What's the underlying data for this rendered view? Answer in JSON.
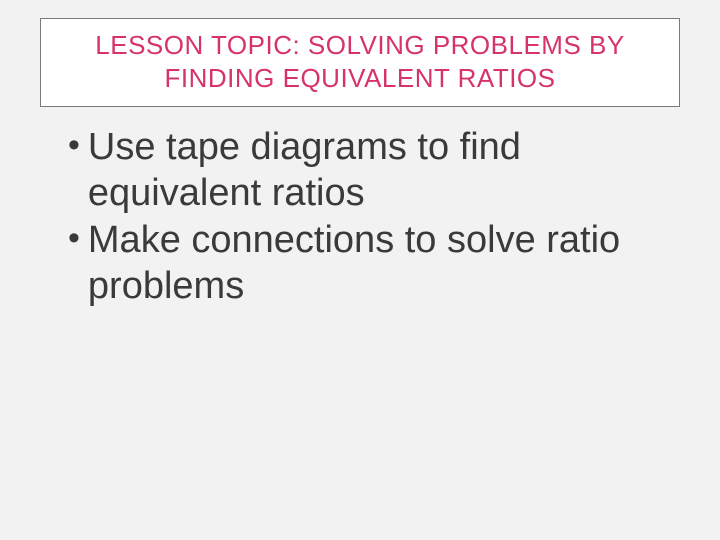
{
  "colors": {
    "background": "#f2f2f2",
    "title_box_bg": "#ffffff",
    "title_box_border": "#7a7a7a",
    "title_text": "#d6336c",
    "body_text": "#3a3a3a",
    "bullet_mark": "#3a3a3a"
  },
  "typography": {
    "title_fontsize": 26,
    "title_weight": 400,
    "body_fontsize": 38,
    "font_family": "Arial"
  },
  "title": "LESSON TOPIC:  SOLVING PROBLEMS BY FINDING EQUIVALENT RATIOS",
  "bullets": [
    "Use tape diagrams to find equivalent ratios",
    "Make connections to solve ratio problems"
  ],
  "bullet_symbol": "•"
}
